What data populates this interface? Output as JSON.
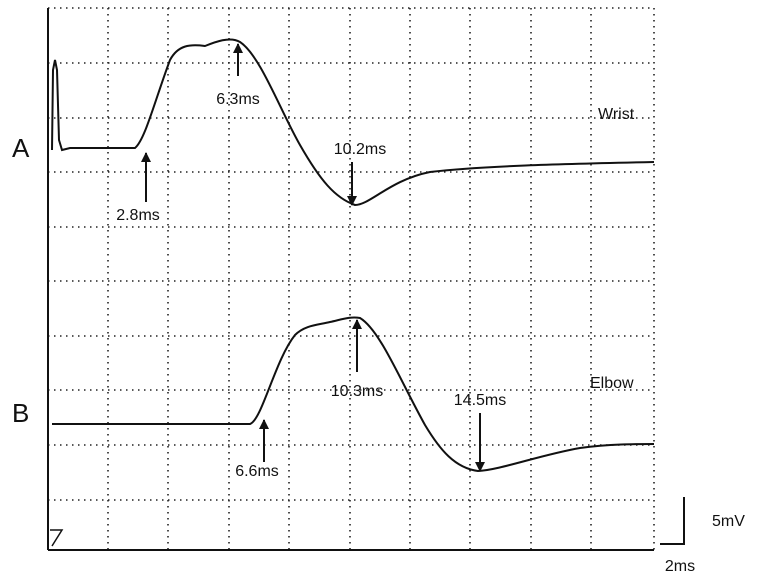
{
  "panels": [
    {
      "label": "A",
      "site": "Wrist",
      "annotations": [
        "2.8ms",
        "6.3ms",
        "10.2ms"
      ]
    },
    {
      "label": "B",
      "site": "Elbow",
      "annotations": [
        "6.6ms",
        "10.3ms",
        "14.5ms"
      ]
    }
  ],
  "scale": {
    "amplitude": "5mV",
    "time": "2ms"
  }
}
